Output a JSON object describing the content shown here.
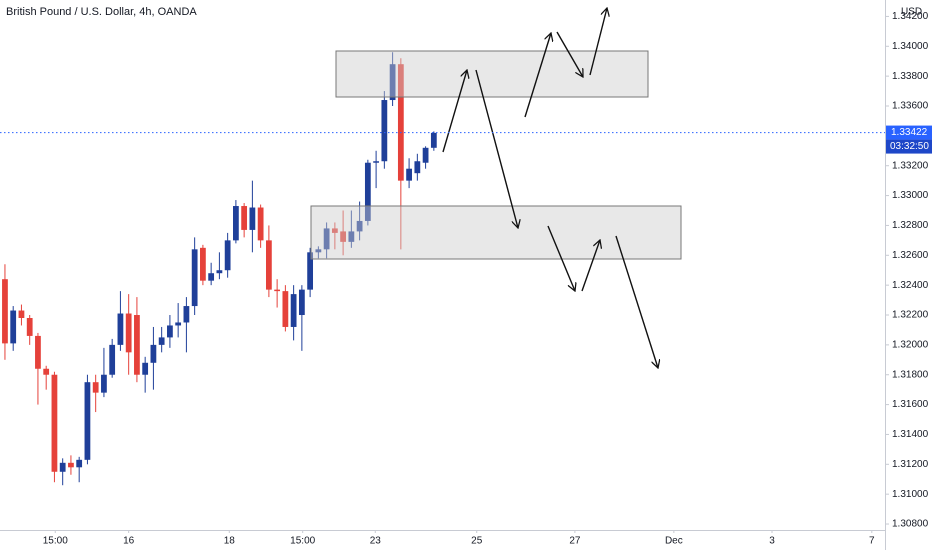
{
  "chart_data": {
    "type": "candlestick",
    "title": "British Pound / U.S. Dollar, 4h, OANDA",
    "y_axis_label": "USD",
    "up_color": "#1f3f99",
    "down_color": "#e5413a",
    "open": [
      1.3244,
      1.3201,
      1.3223,
      1.3218,
      1.3206,
      1.3184,
      1.318,
      1.3115,
      1.3121,
      1.3118,
      1.3123,
      1.3175,
      1.3168,
      1.318,
      1.32,
      1.3221,
      1.322,
      1.318,
      1.3188,
      1.32,
      1.3205,
      1.3213,
      1.3215,
      1.3226,
      1.3265,
      1.3243,
      1.3248,
      1.325,
      1.327,
      1.3293,
      1.3277,
      1.3292,
      1.327,
      1.3237,
      1.3236,
      1.3212,
      1.322,
      1.3237,
      1.3262,
      1.3264,
      1.3278,
      1.3276,
      1.3269,
      1.3276,
      1.3283,
      1.3322,
      1.3323,
      1.3364,
      1.3388,
      1.331,
      1.3315,
      1.3322,
      1.3332
    ],
    "high": [
      1.3254,
      1.3226,
      1.3227,
      1.322,
      1.3208,
      1.3186,
      1.3182,
      1.3124,
      1.3126,
      1.3125,
      1.318,
      1.318,
      1.3198,
      1.3204,
      1.3236,
      1.3234,
      1.3232,
      1.3192,
      1.3212,
      1.3212,
      1.322,
      1.3228,
      1.3232,
      1.3272,
      1.3267,
      1.3255,
      1.3262,
      1.3275,
      1.3297,
      1.3295,
      1.331,
      1.3294,
      1.328,
      1.3244,
      1.324,
      1.324,
      1.324,
      1.3265,
      1.3266,
      1.3282,
      1.3282,
      1.329,
      1.329,
      1.3296,
      1.3324,
      1.333,
      1.337,
      1.3396,
      1.3392,
      1.3325,
      1.3328,
      1.3333,
      1.3343
    ],
    "low": [
      1.319,
      1.3196,
      1.3213,
      1.32,
      1.316,
      1.317,
      1.3108,
      1.3106,
      1.3113,
      1.3108,
      1.312,
      1.3155,
      1.3165,
      1.3178,
      1.3196,
      1.318,
      1.3175,
      1.3168,
      1.317,
      1.3195,
      1.3198,
      1.3205,
      1.3195,
      1.322,
      1.324,
      1.324,
      1.3244,
      1.3245,
      1.3268,
      1.3272,
      1.3262,
      1.3265,
      1.3232,
      1.3225,
      1.3209,
      1.3203,
      1.3196,
      1.3232,
      1.3258,
      1.3258,
      1.3264,
      1.326,
      1.3265,
      1.327,
      1.328,
      1.3305,
      1.3318,
      1.336,
      1.3264,
      1.3305,
      1.331,
      1.3318,
      1.333
    ],
    "close": [
      1.3201,
      1.3223,
      1.3218,
      1.3206,
      1.3184,
      1.318,
      1.3115,
      1.3121,
      1.3118,
      1.3123,
      1.3175,
      1.3168,
      1.318,
      1.32,
      1.3221,
      1.3195,
      1.318,
      1.3188,
      1.32,
      1.3205,
      1.3213,
      1.3215,
      1.3226,
      1.3264,
      1.3243,
      1.3248,
      1.325,
      1.327,
      1.3293,
      1.3277,
      1.3292,
      1.327,
      1.3237,
      1.3236,
      1.3212,
      1.3234,
      1.3237,
      1.3262,
      1.3264,
      1.3278,
      1.3275,
      1.3269,
      1.3276,
      1.3283,
      1.3322,
      1.3323,
      1.3364,
      1.3388,
      1.331,
      1.3318,
      1.3323,
      1.3332,
      1.3342
    ],
    "xlim": [
      -0.6,
      106.7
    ],
    "xticks": [
      {
        "value": 6.1,
        "label": "15:00"
      },
      {
        "value": 15,
        "label": "16"
      },
      {
        "value": 27.2,
        "label": "18"
      },
      {
        "value": 36.1,
        "label": "15:00"
      },
      {
        "value": 44.9,
        "label": "23"
      },
      {
        "value": 57.2,
        "label": "25"
      },
      {
        "value": 69.1,
        "label": "27"
      },
      {
        "value": 81.1,
        "label": "Dec"
      },
      {
        "value": 93,
        "label": "3"
      },
      {
        "value": 105.1,
        "label": "7"
      }
    ],
    "ylim": [
      1.3076,
      1.3431
    ],
    "yticks": [
      {
        "value": 1.342,
        "label": "1.34200"
      },
      {
        "value": 1.34,
        "label": "1.34000"
      },
      {
        "value": 1.338,
        "label": "1.33800"
      },
      {
        "value": 1.336,
        "label": "1.33600"
      },
      {
        "value": 1.332,
        "label": "1.33200"
      },
      {
        "value": 1.33,
        "label": "1.33000"
      },
      {
        "value": 1.328,
        "label": "1.32800"
      },
      {
        "value": 1.326,
        "label": "1.32600"
      },
      {
        "value": 1.324,
        "label": "1.32400"
      },
      {
        "value": 1.322,
        "label": "1.32200"
      },
      {
        "value": 1.32,
        "label": "1.32000"
      },
      {
        "value": 1.318,
        "label": "1.31800"
      },
      {
        "value": 1.316,
        "label": "1.31600"
      },
      {
        "value": 1.314,
        "label": "1.31400"
      },
      {
        "value": 1.312,
        "label": "1.31200"
      },
      {
        "value": 1.31,
        "label": "1.31000"
      },
      {
        "value": 1.308,
        "label": "1.30800"
      }
    ],
    "last_price": {
      "value": 1.33422,
      "label": "1.33422"
    },
    "countdown": "03:32:50",
    "last_price_color": "#2962ff"
  }
}
